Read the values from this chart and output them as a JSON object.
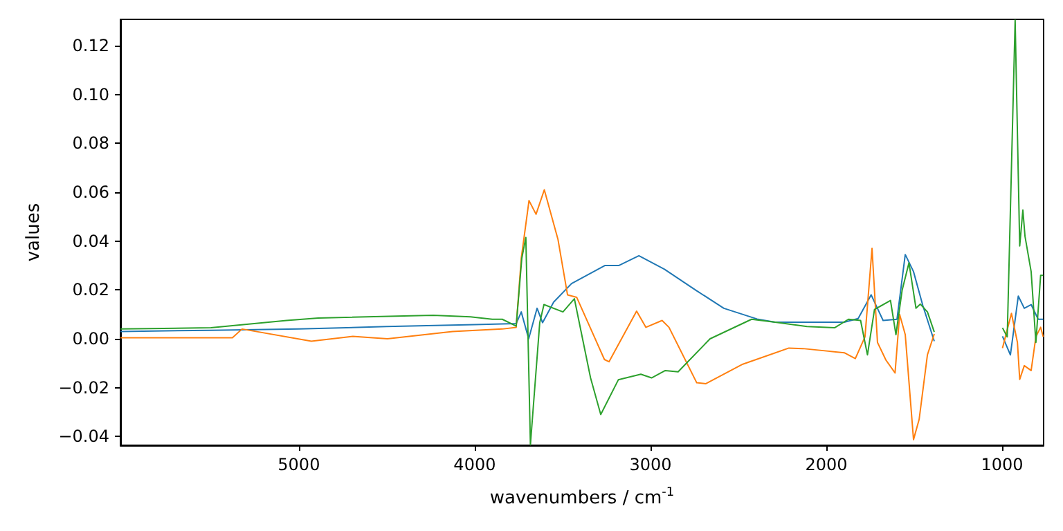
{
  "chart_data": {
    "type": "line",
    "xlabel": "wavenumbers / cm$^{-1}$",
    "ylabel": "values",
    "xlim": [
      6015,
      764
    ],
    "xticks": [
      5000,
      4000,
      3000,
      2000,
      1000
    ],
    "ylim": [
      -0.0436,
      0.1308
    ],
    "yticks": [
      {
        "value": -0.04,
        "label": "−0.04"
      },
      {
        "value": -0.02,
        "label": "−0.02"
      },
      {
        "value": 0,
        "label": "0.00"
      },
      {
        "value": 0.02,
        "label": "0.02"
      },
      {
        "value": 0.04,
        "label": "0.04"
      },
      {
        "value": 0.06,
        "label": "0.06"
      },
      {
        "value": 0.08,
        "label": "0.08"
      },
      {
        "value": 0.1,
        "label": "0.10"
      },
      {
        "value": 0.12,
        "label": "0.12"
      }
    ],
    "line_style": "solid",
    "series": [
      {
        "color": "#1f77b4",
        "x": [
          6015,
          5500,
          5000,
          4500,
          4000,
          3764,
          3735,
          3693,
          3645,
          3614,
          3551,
          3449,
          3260,
          3181,
          3066,
          2921,
          2740,
          2583,
          2394,
          2291,
          2055,
          1898,
          1819,
          1745,
          1677,
          1598,
          1551,
          1504,
          1451,
          1386,
          1200,
          998,
          953,
          908,
          874,
          835,
          795,
          766
        ],
        "values": [
          0.003,
          0.0035,
          0.004,
          0.005,
          0.0058,
          0.0062,
          0.011,
          0.0,
          0.0125,
          0.0066,
          0.015,
          0.0226,
          0.03,
          0.03,
          0.034,
          0.0285,
          0.0198,
          0.0125,
          0.0081,
          0.0068,
          0.0068,
          0.0068,
          0.0083,
          0.018,
          0.0075,
          0.008,
          0.0345,
          0.0275,
          0.0136,
          -0.001,
          null,
          0.001,
          -0.0066,
          0.0175,
          0.0125,
          0.014,
          0.008,
          0.008
        ]
      },
      {
        "color": "#ff7f0e",
        "x": [
          6015,
          5378,
          5323,
          4929,
          4693,
          4496,
          4126,
          3843,
          3764,
          3735,
          3691,
          3651,
          3604,
          3526,
          3472,
          3420,
          3262,
          3236,
          3079,
          3026,
          2934,
          2895,
          2737,
          2685,
          2475,
          2213,
          2134,
          1898,
          1835,
          1780,
          1740,
          1709,
          1661,
          1609,
          1583,
          1551,
          1504,
          1472,
          1425,
          1386,
          1200,
          998,
          947,
          913,
          900,
          874,
          835,
          808,
          781,
          766
        ],
        "values": [
          0.0004,
          0.0004,
          0.004,
          -0.001,
          0.001,
          0.0,
          0.003,
          0.004,
          0.0047,
          0.033,
          0.0566,
          0.051,
          0.061,
          0.0406,
          0.018,
          0.017,
          -0.0085,
          -0.0094,
          0.0113,
          0.0047,
          0.0075,
          0.0047,
          -0.018,
          -0.0184,
          -0.0104,
          -0.0038,
          -0.004,
          -0.0057,
          -0.0081,
          0.0008,
          0.037,
          -0.0015,
          -0.0087,
          -0.014,
          0.01,
          0.0017,
          -0.0413,
          -0.033,
          -0.0066,
          0.002,
          null,
          -0.0038,
          0.0104,
          -0.0015,
          -0.0166,
          -0.011,
          -0.013,
          0.0008,
          0.0047,
          0.0008
        ]
      },
      {
        "color": "#2ca02c",
        "x": [
          6015,
          5500,
          5070,
          4890,
          4236,
          4024,
          3900,
          3843,
          3764,
          3732,
          3709,
          3683,
          3630,
          3606,
          3498,
          3433,
          3341,
          3283,
          3183,
          3055,
          2994,
          2916,
          2843,
          2661,
          2425,
          2291,
          2110,
          1953,
          1874,
          1805,
          1766,
          1726,
          1635,
          1604,
          1569,
          1530,
          1490,
          1465,
          1425,
          1386,
          1200,
          998,
          971,
          926,
          900,
          882,
          870,
          835,
          808,
          781,
          766
        ],
        "values": [
          0.004,
          0.0045,
          0.0075,
          0.0085,
          0.0096,
          0.009,
          0.008,
          0.008,
          0.0052,
          0.033,
          0.0415,
          -0.0434,
          0.0066,
          0.014,
          0.011,
          0.0164,
          -0.016,
          -0.031,
          -0.0168,
          -0.0145,
          -0.016,
          -0.013,
          -0.0135,
          0.0,
          0.008,
          0.0068,
          0.005,
          0.0045,
          0.008,
          0.0075,
          -0.0066,
          0.012,
          0.0157,
          0.0017,
          0.0198,
          0.0311,
          0.0125,
          0.0142,
          0.011,
          0.0028,
          null,
          0.0045,
          0.0008,
          0.1305,
          0.038,
          0.0527,
          0.042,
          0.0275,
          -0.0015,
          0.026,
          0.026
        ]
      }
    ]
  }
}
